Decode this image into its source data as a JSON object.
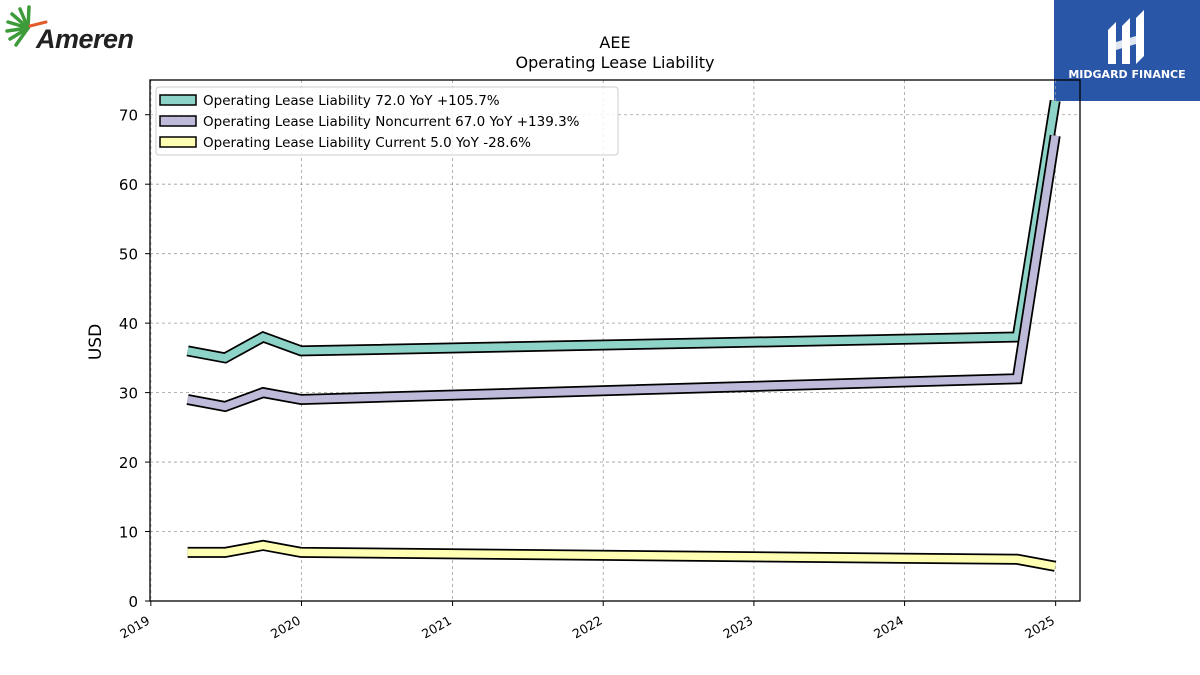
{
  "brand": {
    "left_logo_text": "Ameren",
    "right_logo_text": "MIDGARD FINANCE"
  },
  "chart_data": {
    "type": "line",
    "title": "AEE",
    "subtitle": "Operating Lease Liability",
    "xlabel": "",
    "ylabel": "USD",
    "x_ticks": [
      "2019",
      "2020",
      "2021",
      "2022",
      "2023",
      "2024",
      "2025"
    ],
    "y_ticks": [
      0,
      10,
      20,
      30,
      40,
      50,
      60,
      70
    ],
    "ylim": [
      0,
      75
    ],
    "xlim": [
      "2018-12-30",
      "2025-03-01"
    ],
    "grid": true,
    "legend_position": "top-left",
    "x": [
      "2019-03-31",
      "2019-06-30",
      "2019-09-30",
      "2019-12-31",
      "2024-09-30",
      "2024-12-31"
    ],
    "series": [
      {
        "name": "Operating Lease Liability",
        "legend": "Operating Lease Liability  72.0 YoY +105.7%",
        "color": "#8dd3c7",
        "values": [
          36,
          35,
          38,
          36,
          38,
          72
        ]
      },
      {
        "name": "Operating Lease Liability Noncurrent",
        "legend": "Operating Lease Liability Noncurrent  67.0 YoY +139.3%",
        "color": "#bebada",
        "values": [
          29,
          28,
          30,
          29,
          32,
          67
        ]
      },
      {
        "name": "Operating Lease Liability Current",
        "legend": "Operating Lease Liability Current  5.0 YoY -28.6%",
        "color": "#ffffb3",
        "values": [
          7,
          7,
          8,
          7,
          6,
          5
        ]
      }
    ]
  }
}
